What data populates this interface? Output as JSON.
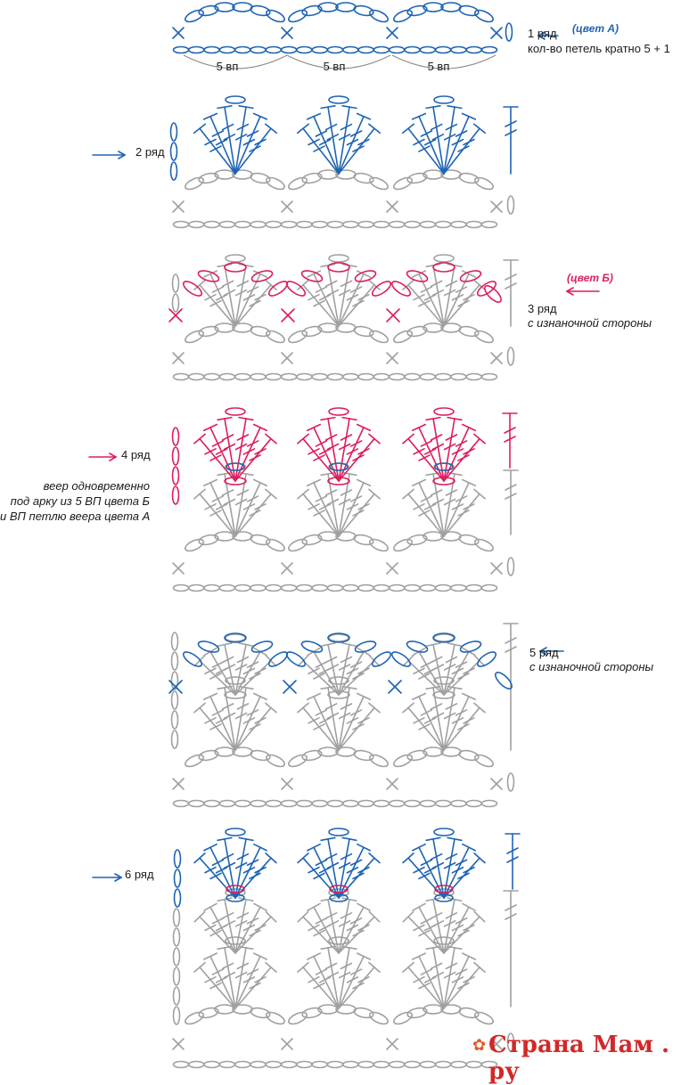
{
  "colors": {
    "a": "#1e64b4",
    "b": "#dc1e5a",
    "done": "#a0a0a0",
    "text": "#1a1a1a"
  },
  "row1": {
    "label": "1 ряд",
    "color_note": "(цвет А)",
    "note": "кол-во петель кратно 5 + 1",
    "chain_labels": [
      "5 вп",
      "5 вп",
      "5 вп"
    ]
  },
  "row2": {
    "label": "2 ряд"
  },
  "row3": {
    "label": "3 ряд",
    "color_note": "(цвет Б)",
    "note": "с изнаночной стороны"
  },
  "row4": {
    "label": "4 ряд",
    "note_lines": [
      "веер одновременно",
      "под арку из 5 ВП цвета Б",
      "и ВП петлю веера цвета А"
    ]
  },
  "row5": {
    "label": "5 ряд",
    "note": "с изнаночной стороны"
  },
  "row6": {
    "label": "6 ряд"
  },
  "watermark": "Страна Мам . ру",
  "icons": [
    "arrow-left-icon",
    "arrow-right-icon",
    "flower-icon"
  ]
}
